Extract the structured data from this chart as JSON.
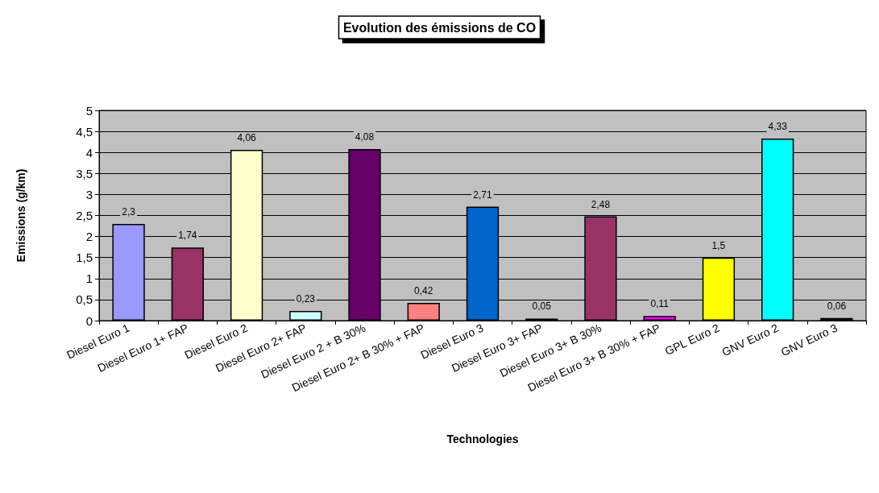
{
  "chart_data": {
    "type": "bar",
    "title": "Evolution des émissions de CO",
    "xlabel": "Technologies",
    "ylabel": "Emissions (g/km)",
    "categories": [
      "Diesel Euro 1",
      "Diesel Euro 1+ FAP",
      "Diesel Euro 2",
      "Diesel Euro 2+ FAP",
      "Diesel Euro 2 + B 30%",
      "Diesel Euro 2+ B 30% + FAP",
      "Diesel Euro 3",
      "Diesel Euro 3+ FAP",
      "Diesel Euro 3+ B 30%",
      "Diesel Euro 3+ B 30% + FAP",
      "GPL Euro 2",
      "GNV Euro 2",
      "GNV Euro 3"
    ],
    "values": [
      2.3,
      1.74,
      4.06,
      0.23,
      4.08,
      0.42,
      2.71,
      0.05,
      2.48,
      0.11,
      1.5,
      4.33,
      0.06
    ],
    "colors": [
      "#9999ff",
      "#993366",
      "#ffffcc",
      "#ccffff",
      "#660066",
      "#ff8080",
      "#0066cc",
      "#000080",
      "#993366",
      "#ff00ff",
      "#ffff00",
      "#00ffff",
      "#800080"
    ],
    "value_labels": [
      "2,3",
      "1,74",
      "4,06",
      "0,23",
      "4,08",
      "0,42",
      "2,71",
      "0,05",
      "2,48",
      "0,11",
      "1,5",
      "4,33",
      "0,06"
    ],
    "ylim": [
      0,
      5
    ],
    "yticks": [
      0,
      {
        "value": 0.5,
        "label": "0,5"
      },
      1,
      {
        "value": 1.5,
        "label": "1,5"
      },
      2,
      {
        "value": 2.5,
        "label": "2,5"
      },
      3,
      {
        "value": 3.5,
        "label": "3,5"
      },
      4,
      {
        "value": 4.5,
        "label": "4,5"
      },
      5
    ],
    "grid": "y"
  }
}
